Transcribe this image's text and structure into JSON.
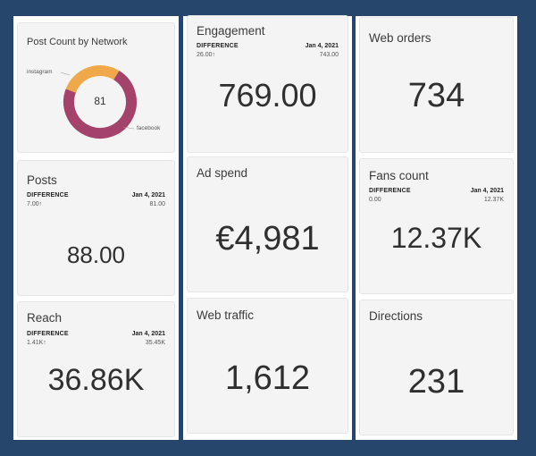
{
  "colors": {
    "background": "#26476b",
    "instagram": "#f0a94a",
    "facebook": "#a4426c"
  },
  "post_count": {
    "title": "Post Count by Network",
    "center_value": "81",
    "labels": {
      "instagram": "instagram",
      "facebook": "facebook"
    },
    "chart_data": {
      "type": "pie",
      "categories": [
        "instagram",
        "facebook"
      ],
      "values": [
        28,
        72
      ]
    }
  },
  "posts": {
    "title": "Posts",
    "diff_label": "DIFFERENCE",
    "date": "Jan 4, 2021",
    "diff_value": "7.00↑",
    "prev_value": "81.00",
    "value": "88.00"
  },
  "reach": {
    "title": "Reach",
    "diff_label": "DIFFERENCE",
    "date": "Jan 4, 2021",
    "diff_value": "1.41K↑",
    "prev_value": "35.45K",
    "value": "36.86K"
  },
  "engagement": {
    "title": "Engagement",
    "diff_label": "DIFFERENCE",
    "date": "Jan 4, 2021",
    "diff_value": "26.00↑",
    "prev_value": "743.00",
    "value": "769.00"
  },
  "ad_spend": {
    "title": "Ad spend",
    "value": "€4,981"
  },
  "web_traffic": {
    "title": "Web traffic",
    "value": "1,612"
  },
  "web_orders": {
    "title": "Web orders",
    "value": "734"
  },
  "fans_count": {
    "title": "Fans count",
    "diff_label": "DIFFERENCE",
    "date": "Jan 4, 2021",
    "diff_value": "0.00",
    "prev_value": "12.37K",
    "value": "12.37K"
  },
  "directions": {
    "title": "Directions",
    "value": "231"
  }
}
